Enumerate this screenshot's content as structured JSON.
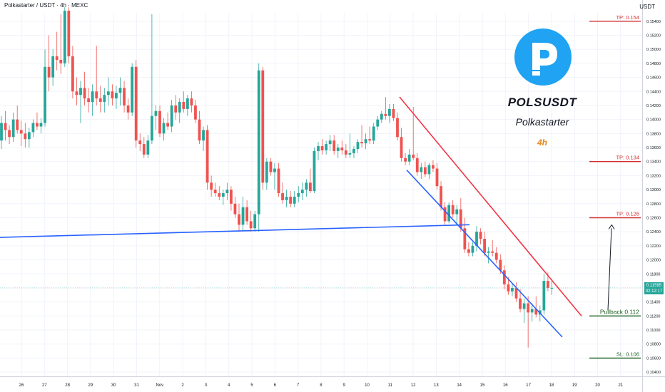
{
  "header": {
    "symbol_title": "Polkastarter / USDT · 4h · MEXC",
    "axis_unit": "USDT"
  },
  "brand": {
    "symbol": "POLSUSDT",
    "name": "Polkastarter",
    "timeframe": "4h",
    "logo_icon": "polkastarter-logo-icon",
    "logo_color": "#1fa3f2"
  },
  "current_price": {
    "value": "0.11595",
    "countdown": "02:12:17"
  },
  "colors": {
    "up": "#26a69a",
    "down": "#ef5350",
    "support_line": "#2962ff",
    "channel_upper": "#f23645",
    "channel_lower": "#2962ff",
    "tp_line": "#d32f2f",
    "pullback_line": "#1b5e20"
  },
  "chart_data": {
    "type": "candlestick",
    "y_axis": {
      "ylim": [
        0.1034,
        0.1552
      ],
      "tick_step": 0.002,
      "tick_labels": [
        "0.10400",
        "0.10600",
        "0.10800",
        "0.11000",
        "0.11200",
        "0.11400",
        "0.11600",
        "0.11800",
        "0.12000",
        "0.12200",
        "0.12400",
        "0.12600",
        "0.12800",
        "0.13000",
        "0.13200",
        "0.13400",
        "0.13600",
        "0.13800",
        "0.14000",
        "0.14200",
        "0.14400",
        "0.14600",
        "0.14800",
        "0.15000",
        "0.15200",
        "0.15400"
      ]
    },
    "x_axis": {
      "tick_labels": [
        "26",
        "27",
        "28",
        "29",
        "30",
        "31",
        "Nov",
        "2",
        "3",
        "4",
        "5",
        "6",
        "7",
        "8",
        "9",
        "10",
        "11",
        "12",
        "13",
        "14",
        "15",
        "16",
        "17",
        "18",
        "19",
        "20",
        "21"
      ]
    },
    "levels": [
      {
        "label": "TP: 0.154",
        "price": 0.154,
        "kind": "tp"
      },
      {
        "label": "TP: 0.134",
        "price": 0.134,
        "kind": "tp"
      },
      {
        "label": "TP: 0.126",
        "price": 0.126,
        "kind": "tp"
      },
      {
        "label": "Pullback 0.112",
        "price": 0.112,
        "kind": "pullback"
      },
      {
        "label": "SL: 0.106",
        "price": 0.106,
        "kind": "sl"
      }
    ],
    "candles": [
      [
        0.137,
        0.1405,
        0.1358,
        0.1395
      ],
      [
        0.1395,
        0.1412,
        0.137,
        0.1385
      ],
      [
        0.1385,
        0.1392,
        0.1365,
        0.1375
      ],
      [
        0.1375,
        0.141,
        0.1368,
        0.14
      ],
      [
        0.14,
        0.142,
        0.138,
        0.1385
      ],
      [
        0.1385,
        0.1398,
        0.1362,
        0.138
      ],
      [
        0.138,
        0.1395,
        0.136,
        0.1372
      ],
      [
        0.1372,
        0.1388,
        0.136,
        0.1382
      ],
      [
        0.1382,
        0.14,
        0.1375,
        0.1395
      ],
      [
        0.1395,
        0.141,
        0.1385,
        0.139
      ],
      [
        0.139,
        0.1402,
        0.138,
        0.1395
      ],
      [
        0.1395,
        0.15,
        0.139,
        0.1475
      ],
      [
        0.1475,
        0.152,
        0.144,
        0.146
      ],
      [
        0.146,
        0.15,
        0.1448,
        0.149
      ],
      [
        0.149,
        0.1525,
        0.147,
        0.1485
      ],
      [
        0.1485,
        0.155,
        0.1465,
        0.148
      ],
      [
        0.148,
        0.156,
        0.1475,
        0.1555
      ],
      [
        0.1555,
        0.156,
        0.148,
        0.149
      ],
      [
        0.149,
        0.1505,
        0.143,
        0.144
      ],
      [
        0.144,
        0.146,
        0.142,
        0.1435
      ],
      [
        0.1435,
        0.1455,
        0.1395,
        0.1445
      ],
      [
        0.1445,
        0.1468,
        0.142,
        0.143
      ],
      [
        0.143,
        0.1445,
        0.141,
        0.1425
      ],
      [
        0.1425,
        0.145,
        0.1405,
        0.144
      ],
      [
        0.144,
        0.1505,
        0.142,
        0.143
      ],
      [
        0.143,
        0.1448,
        0.141,
        0.1425
      ],
      [
        0.1425,
        0.1445,
        0.141,
        0.1435
      ],
      [
        0.1435,
        0.146,
        0.142,
        0.144
      ],
      [
        0.144,
        0.145,
        0.142,
        0.143
      ],
      [
        0.143,
        0.1448,
        0.1415,
        0.1438
      ],
      [
        0.1438,
        0.146,
        0.142,
        0.1445
      ],
      [
        0.1445,
        0.1455,
        0.141,
        0.142
      ],
      [
        0.142,
        0.143,
        0.14,
        0.141
      ],
      [
        0.141,
        0.148,
        0.1405,
        0.1475
      ],
      [
        0.1475,
        0.1485,
        0.136,
        0.137
      ],
      [
        0.137,
        0.138,
        0.1355,
        0.1365
      ],
      [
        0.1365,
        0.1375,
        0.1345,
        0.135
      ],
      [
        0.135,
        0.1378,
        0.1345,
        0.137
      ],
      [
        0.137,
        0.155,
        0.1365,
        0.1405
      ],
      [
        0.1405,
        0.142,
        0.1385,
        0.1412
      ],
      [
        0.1412,
        0.142,
        0.1375,
        0.138
      ],
      [
        0.138,
        0.1402,
        0.137,
        0.1395
      ],
      [
        0.1395,
        0.141,
        0.1385,
        0.139
      ],
      [
        0.139,
        0.1428,
        0.1382,
        0.142
      ],
      [
        0.142,
        0.1435,
        0.14,
        0.141
      ],
      [
        0.141,
        0.143,
        0.1395,
        0.1425
      ],
      [
        0.1425,
        0.144,
        0.141,
        0.1415
      ],
      [
        0.1415,
        0.1435,
        0.1405,
        0.143
      ],
      [
        0.143,
        0.144,
        0.141,
        0.142
      ],
      [
        0.142,
        0.1428,
        0.1395,
        0.14
      ],
      [
        0.14,
        0.1412,
        0.1365,
        0.137
      ],
      [
        0.137,
        0.139,
        0.1355,
        0.1385
      ],
      [
        0.1385,
        0.1392,
        0.13,
        0.131
      ],
      [
        0.131,
        0.132,
        0.129,
        0.13
      ],
      [
        0.13,
        0.131,
        0.129,
        0.1295
      ],
      [
        0.1295,
        0.1305,
        0.1285,
        0.129
      ],
      [
        0.129,
        0.13,
        0.1278,
        0.1295
      ],
      [
        0.1295,
        0.131,
        0.1285,
        0.13
      ],
      [
        0.13,
        0.1305,
        0.127,
        0.128
      ],
      [
        0.128,
        0.129,
        0.126,
        0.1265
      ],
      [
        0.1265,
        0.128,
        0.124,
        0.125
      ],
      [
        0.125,
        0.129,
        0.1242,
        0.1275
      ],
      [
        0.1275,
        0.1285,
        0.125,
        0.1255
      ],
      [
        0.1255,
        0.127,
        0.124,
        0.1245
      ],
      [
        0.1245,
        0.127,
        0.124,
        0.1265
      ],
      [
        0.1265,
        0.148,
        0.124,
        0.147
      ],
      [
        0.147,
        0.1475,
        0.13,
        0.131
      ],
      [
        0.131,
        0.1345,
        0.13,
        0.134
      ],
      [
        0.134,
        0.1345,
        0.132,
        0.1325
      ],
      [
        0.1325,
        0.1338,
        0.13,
        0.133
      ],
      [
        0.133,
        0.1338,
        0.129,
        0.1295
      ],
      [
        0.1295,
        0.131,
        0.128,
        0.1285
      ],
      [
        0.1285,
        0.13,
        0.1275,
        0.129
      ],
      [
        0.129,
        0.1298,
        0.1275,
        0.128
      ],
      [
        0.128,
        0.1298,
        0.1275,
        0.129
      ],
      [
        0.129,
        0.1305,
        0.1282,
        0.1295
      ],
      [
        0.1295,
        0.131,
        0.1285,
        0.13
      ],
      [
        0.13,
        0.1315,
        0.129,
        0.131
      ],
      [
        0.131,
        0.133,
        0.1295,
        0.1298
      ],
      [
        0.1298,
        0.136,
        0.1295,
        0.1355
      ],
      [
        0.1355,
        0.1368,
        0.1342,
        0.1362
      ],
      [
        0.1362,
        0.1372,
        0.135,
        0.1356
      ],
      [
        0.1356,
        0.137,
        0.135,
        0.1365
      ],
      [
        0.1365,
        0.1378,
        0.1355,
        0.137
      ],
      [
        0.137,
        0.1378,
        0.135,
        0.1355
      ],
      [
        0.1355,
        0.1365,
        0.1345,
        0.136
      ],
      [
        0.136,
        0.137,
        0.135,
        0.1356
      ],
      [
        0.1356,
        0.1365,
        0.1345,
        0.135
      ],
      [
        0.135,
        0.138,
        0.1345,
        0.1352
      ],
      [
        0.1352,
        0.1362,
        0.1345,
        0.1358
      ],
      [
        0.1358,
        0.1372,
        0.1352,
        0.1368
      ],
      [
        0.1368,
        0.1392,
        0.136,
        0.1366
      ],
      [
        0.1366,
        0.138,
        0.1358,
        0.1372
      ],
      [
        0.1372,
        0.139,
        0.1365,
        0.137
      ],
      [
        0.137,
        0.1395,
        0.1365,
        0.139
      ],
      [
        0.139,
        0.1405,
        0.1385,
        0.14
      ],
      [
        0.14,
        0.1412,
        0.1395,
        0.1408
      ],
      [
        0.1408,
        0.1432,
        0.14,
        0.1405
      ],
      [
        0.1405,
        0.1422,
        0.1395,
        0.1415
      ],
      [
        0.1415,
        0.1422,
        0.1398,
        0.1402
      ],
      [
        0.1402,
        0.141,
        0.137,
        0.1375
      ],
      [
        0.1375,
        0.1388,
        0.134,
        0.1345
      ],
      [
        0.1345,
        0.1352,
        0.1335,
        0.134
      ],
      [
        0.134,
        0.1358,
        0.1335,
        0.135
      ],
      [
        0.135,
        0.1418,
        0.1342,
        0.1345
      ],
      [
        0.1345,
        0.1352,
        0.132,
        0.1325
      ],
      [
        0.1325,
        0.1338,
        0.1315,
        0.1332
      ],
      [
        0.1332,
        0.134,
        0.1318,
        0.1322
      ],
      [
        0.1322,
        0.1338,
        0.1315,
        0.1335
      ],
      [
        0.1335,
        0.1342,
        0.1325,
        0.133
      ],
      [
        0.133,
        0.1338,
        0.13,
        0.1305
      ],
      [
        0.1305,
        0.1312,
        0.127,
        0.1275
      ],
      [
        0.1275,
        0.1282,
        0.125,
        0.1255
      ],
      [
        0.1255,
        0.1282,
        0.1252,
        0.1278
      ],
      [
        0.1278,
        0.1285,
        0.126,
        0.1265
      ],
      [
        0.1265,
        0.1278,
        0.1252,
        0.1272
      ],
      [
        0.1272,
        0.1288,
        0.124,
        0.1245
      ],
      [
        0.1245,
        0.126,
        0.121,
        0.1215
      ],
      [
        0.1215,
        0.1225,
        0.1205,
        0.121
      ],
      [
        0.121,
        0.1225,
        0.1205,
        0.122
      ],
      [
        0.122,
        0.1248,
        0.1212,
        0.124
      ],
      [
        0.124,
        0.1245,
        0.1222,
        0.123
      ],
      [
        0.123,
        0.124,
        0.1205,
        0.121
      ],
      [
        0.121,
        0.1218,
        0.1195,
        0.1212
      ],
      [
        0.1212,
        0.1228,
        0.1205,
        0.121
      ],
      [
        0.121,
        0.1218,
        0.1195,
        0.12
      ],
      [
        0.12,
        0.1208,
        0.118,
        0.1185
      ],
      [
        0.1185,
        0.1192,
        0.1158,
        0.1165
      ],
      [
        0.1165,
        0.1175,
        0.115,
        0.1155
      ],
      [
        0.1155,
        0.1165,
        0.1148,
        0.116
      ],
      [
        0.116,
        0.1168,
        0.114,
        0.1145
      ],
      [
        0.1145,
        0.1158,
        0.1125,
        0.113
      ],
      [
        0.113,
        0.1145,
        0.111,
        0.1138
      ],
      [
        0.1138,
        0.1148,
        0.1075,
        0.1125
      ],
      [
        0.1125,
        0.1138,
        0.1112,
        0.113
      ],
      [
        0.113,
        0.1148,
        0.1118,
        0.1122
      ],
      [
        0.1122,
        0.1135,
        0.1112,
        0.1128
      ],
      [
        0.1128,
        0.118,
        0.1122,
        0.117
      ],
      [
        0.117,
        0.1182,
        0.1155,
        0.116
      ],
      [
        0.116,
        0.1172,
        0.115,
        0.116
      ]
    ]
  }
}
